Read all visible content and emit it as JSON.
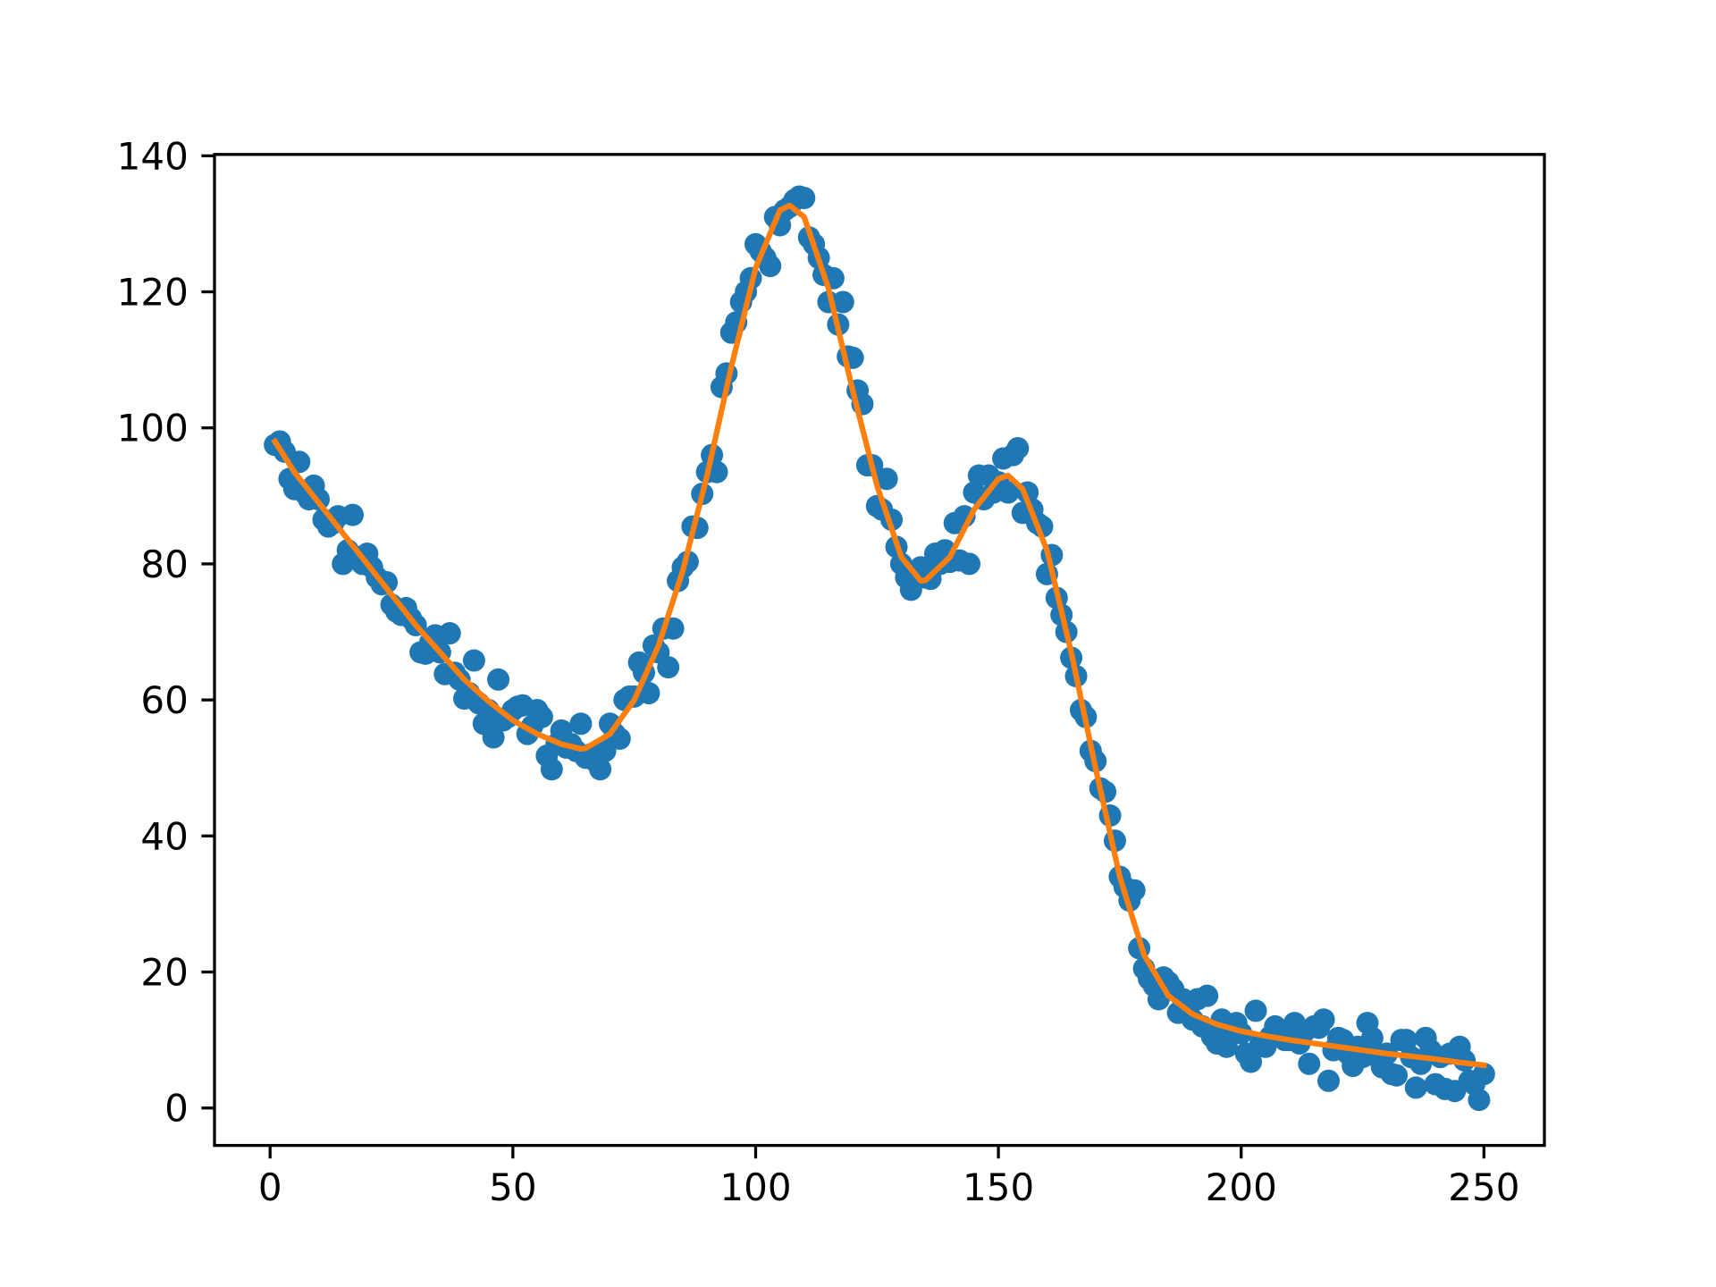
{
  "chart_data": [
    {
      "type": "scatter",
      "color": "#1f77b4",
      "xlim": [
        -11.45,
        262.45
      ],
      "ylim": [
        -5.5,
        140.2
      ],
      "xticks": [
        0,
        50,
        100,
        150,
        200,
        250
      ],
      "yticks": [
        0,
        20,
        40,
        60,
        80,
        100,
        120,
        140
      ],
      "x": [
        1,
        2,
        3,
        4,
        5,
        6,
        7,
        8,
        9,
        10,
        11,
        12,
        13,
        14,
        15,
        16,
        17,
        18,
        19,
        20,
        21,
        22,
        23,
        24,
        25,
        26,
        27,
        28,
        29,
        30,
        31,
        32,
        33,
        34,
        35,
        36,
        37,
        38,
        39,
        40,
        41,
        42,
        43,
        44,
        45,
        46,
        47,
        48,
        49,
        50,
        51,
        52,
        53,
        54,
        55,
        56,
        57,
        58,
        59,
        60,
        61,
        62,
        63,
        64,
        65,
        66,
        67,
        68,
        69,
        70,
        71,
        72,
        73,
        74,
        75,
        76,
        77,
        78,
        79,
        80,
        81,
        82,
        83,
        84,
        85,
        86,
        87,
        88,
        89,
        90,
        91,
        92,
        93,
        94,
        95,
        96,
        97,
        98,
        99,
        100,
        101,
        102,
        103,
        104,
        105,
        106,
        107,
        108,
        109,
        110,
        111,
        112,
        113,
        114,
        115,
        116,
        117,
        118,
        119,
        120,
        121,
        122,
        123,
        124,
        125,
        126,
        127,
        128,
        129,
        130,
        131,
        132,
        133,
        134,
        135,
        136,
        137,
        138,
        139,
        140,
        141,
        142,
        143,
        144,
        145,
        146,
        147,
        148,
        149,
        150,
        151,
        152,
        153,
        154,
        155,
        156,
        157,
        158,
        159,
        160,
        161,
        162,
        163,
        164,
        165,
        166,
        167,
        168,
        169,
        170,
        171,
        172,
        173,
        174,
        175,
        176,
        177,
        178,
        179,
        180,
        181,
        182,
        183,
        184,
        185,
        186,
        187,
        188,
        189,
        190,
        191,
        192,
        193,
        194,
        195,
        196,
        197,
        198,
        199,
        200,
        201,
        202,
        203,
        204,
        205,
        206,
        207,
        208,
        209,
        210,
        211,
        212,
        213,
        214,
        215,
        216,
        217,
        218,
        219,
        220,
        221,
        222,
        223,
        224,
        225,
        226,
        227,
        228,
        229,
        230,
        231,
        232,
        233,
        234,
        235,
        236,
        237,
        238,
        239,
        240,
        241,
        242,
        243,
        244,
        245,
        246,
        247,
        248,
        249,
        250
      ],
      "values": [
        97.5,
        98,
        96.5,
        92.5,
        91,
        95,
        90.5,
        89.5,
        91.5,
        89.5,
        86.5,
        85.5,
        86,
        87,
        80,
        82,
        87.2,
        81,
        80,
        81.5,
        79.5,
        78,
        77,
        77.3,
        74,
        73,
        72.5,
        73.5,
        72,
        71,
        67,
        66.8,
        68.5,
        69.5,
        67,
        63.8,
        69.8,
        64,
        63,
        60.2,
        61,
        65.8,
        59.5,
        56.5,
        58.5,
        54.5,
        63,
        57,
        57.5,
        58.5,
        59,
        59.2,
        55,
        56.2,
        58.5,
        57.5,
        51.8,
        49.8,
        53.5,
        55.5,
        53,
        53.5,
        52.5,
        56.5,
        51.5,
        52,
        51,
        49.8,
        52.5,
        56.5,
        55,
        54.3,
        60,
        60.5,
        60.5,
        65.5,
        64,
        61,
        68,
        67,
        70.5,
        64.8,
        70.5,
        77.5,
        79.5,
        80.3,
        85.5,
        85.3,
        90.3,
        93.5,
        96,
        93.5,
        106,
        108,
        114,
        115.5,
        118.5,
        120,
        122,
        127,
        126,
        125,
        123.8,
        131,
        129.8,
        132,
        132.5,
        133.5,
        134,
        133.8,
        128,
        127,
        125,
        122.5,
        118.5,
        122,
        115.2,
        118.5,
        110.5,
        110.3,
        105.5,
        103.5,
        94.5,
        94.5,
        88.5,
        88,
        92.5,
        86.5,
        82.5,
        80,
        78,
        76.2,
        79,
        79.5,
        78,
        77.8,
        81.5,
        80,
        82,
        80.3,
        86,
        80.5,
        87,
        80,
        90.5,
        93,
        89.5,
        93,
        90.5,
        92,
        95.5,
        90.5,
        96,
        97,
        87.5,
        90.5,
        88,
        86,
        85.5,
        78.5,
        81.3,
        75,
        72.5,
        70,
        66.2,
        63.5,
        58.5,
        57.5,
        52.5,
        51,
        47,
        46.5,
        43,
        39.3,
        34,
        32.5,
        30.5,
        32,
        23.5,
        20.5,
        19,
        18,
        16,
        19.2,
        18.5,
        17.5,
        14,
        16,
        14.5,
        13,
        16,
        12,
        16.5,
        10.5,
        9.5,
        13,
        9,
        11.5,
        12.5,
        11,
        8,
        6.8,
        14.3,
        9.5,
        9,
        10.5,
        12,
        11.5,
        10,
        10,
        12.5,
        9.5,
        11.2,
        6.5,
        12,
        11.8,
        13,
        4,
        8.5,
        10.3,
        10,
        8,
        6.2,
        9,
        7.5,
        12.5,
        10.3,
        7.5,
        6,
        8,
        5,
        4.8,
        10,
        10,
        7.5,
        3,
        6.5,
        10.3,
        8.5,
        3.5,
        7.5,
        2.8,
        8,
        2.5,
        9,
        7,
        4,
        3.5,
        1.2,
        5
      ]
    },
    {
      "type": "line",
      "color": "#ff7f0e",
      "x": [
        1,
        5,
        10,
        15,
        20,
        25,
        30,
        35,
        40,
        45,
        50,
        55,
        60,
        64,
        65,
        70,
        75,
        80,
        85,
        90,
        95,
        100,
        105,
        107,
        110,
        115,
        120,
        125,
        130,
        134,
        135,
        140,
        145,
        150,
        152,
        155,
        160,
        165,
        170,
        175,
        180,
        185,
        190,
        195,
        200,
        205,
        210,
        215,
        220,
        225,
        230,
        235,
        240,
        245,
        250
      ],
      "values": [
        98,
        93.5,
        89,
        84.5,
        80,
        75.5,
        71,
        67,
        63,
        59.8,
        57,
        55,
        53.5,
        52.8,
        52.9,
        55,
        60,
        68,
        79,
        93,
        109,
        123.5,
        132,
        132.7,
        131,
        120.5,
        105.5,
        91.5,
        81,
        77.5,
        77.6,
        81,
        88,
        92.5,
        93,
        91,
        82,
        67,
        50,
        34,
        22.5,
        16.5,
        13.8,
        12.3,
        11.3,
        10.6,
        10,
        9.5,
        9,
        8.5,
        8,
        7.6,
        7.2,
        6.7,
        6.3
      ]
    }
  ]
}
